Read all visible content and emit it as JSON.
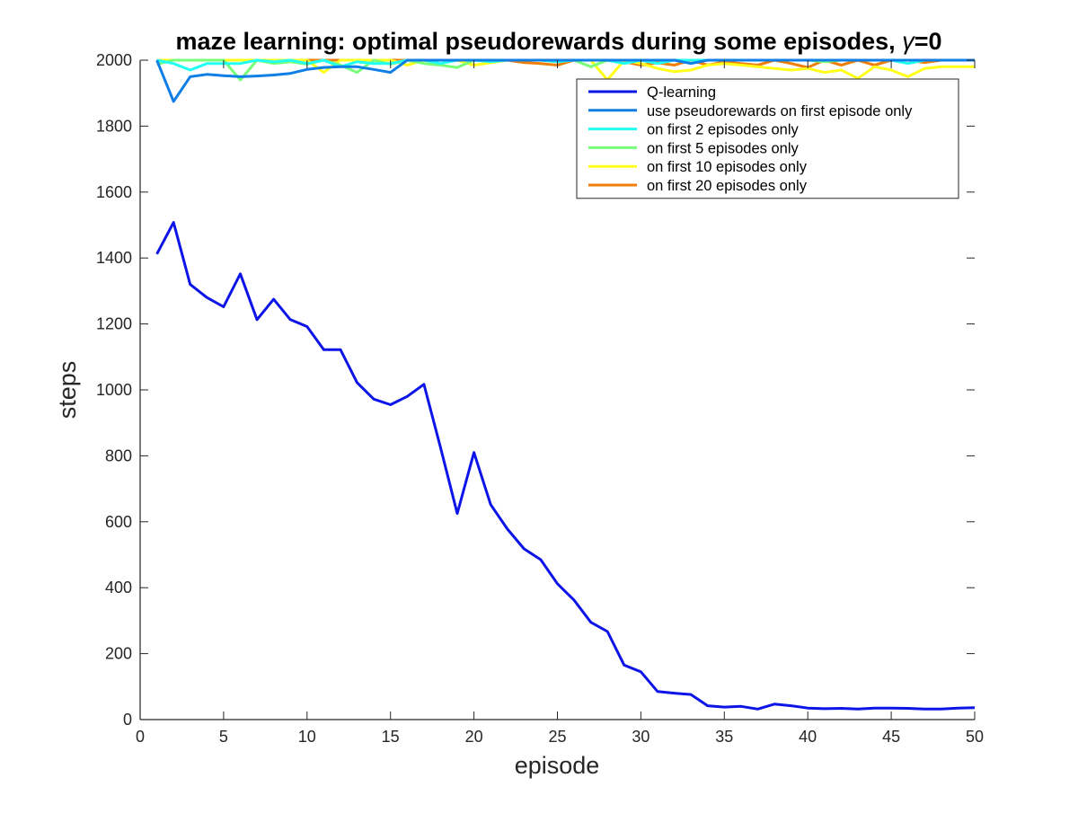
{
  "chart_data": {
    "type": "line",
    "title": "maze learning: optimal pseudorewards during some episodes, ",
    "title_symbol": "γ",
    "title_suffix": "=0",
    "xlabel": "episode",
    "ylabel": "steps",
    "xlim": [
      0,
      50
    ],
    "ylim": [
      0,
      2000
    ],
    "xticks": [
      "0",
      "5",
      "10",
      "15",
      "20",
      "25",
      "30",
      "35",
      "40",
      "45",
      "50"
    ],
    "yticks": [
      "0",
      "200",
      "400",
      "600",
      "800",
      "1000",
      "1200",
      "1400",
      "1600",
      "1800",
      "2000"
    ],
    "grid": false,
    "legend_position": "top-right",
    "x": [
      1,
      2,
      3,
      4,
      5,
      6,
      7,
      8,
      9,
      10,
      11,
      12,
      13,
      14,
      15,
      16,
      17,
      18,
      19,
      20,
      21,
      22,
      23,
      24,
      25,
      26,
      27,
      28,
      29,
      30,
      31,
      32,
      33,
      34,
      35,
      36,
      37,
      38,
      39,
      40,
      41,
      42,
      43,
      44,
      45,
      46,
      47,
      48,
      49,
      50
    ],
    "series": [
      {
        "name": "on first 20 episodes only",
        "color": "#f07f09",
        "values": [
          2000,
          2000,
          2000,
          2000,
          2000,
          2000,
          2000,
          2000,
          2000,
          2000,
          2000,
          2000,
          2000,
          2000,
          2000,
          2000,
          2000,
          2000,
          2000,
          2000,
          2000,
          2000,
          1993,
          1990,
          1985,
          2000,
          2000,
          2000,
          1995,
          1985,
          1992,
          1985,
          2000,
          1985,
          1995,
          1990,
          1985,
          2000,
          1990,
          1978,
          2000,
          1985,
          2000,
          1985,
          2000,
          2000,
          1993,
          2000,
          2000,
          2000
        ]
      },
      {
        "name": "on first 10 episodes only",
        "color": "#ffff1a",
        "values": [
          2000,
          2000,
          2000,
          2000,
          2000,
          2000,
          2000,
          2000,
          2000,
          2000,
          1963,
          2000,
          2000,
          2000,
          2000,
          1985,
          2000,
          2000,
          2000,
          1985,
          1992,
          2000,
          2000,
          2000,
          2000,
          2000,
          2000,
          1940,
          2000,
          1990,
          1975,
          1965,
          1970,
          1985,
          1990,
          1985,
          1980,
          1975,
          1970,
          1975,
          1963,
          1970,
          1945,
          1980,
          1970,
          1950,
          1975,
          1980,
          1980,
          1980
        ]
      },
      {
        "name": "on first 5 episodes only",
        "color": "#77ff77",
        "values": [
          1988,
          2000,
          2000,
          2000,
          2000,
          1940,
          2000,
          1990,
          1995,
          1988,
          2000,
          1985,
          1963,
          2000,
          1988,
          2000,
          1990,
          1985,
          1978,
          2000,
          2000,
          2000,
          2000,
          2000,
          1995,
          2000,
          1980,
          2000,
          1990,
          2000,
          2000,
          2000,
          2000,
          2000,
          2000,
          2000,
          2000,
          2000,
          2000,
          2000,
          1995,
          2000,
          2000,
          2000,
          2000,
          2000,
          2000,
          2000,
          2000,
          2000
        ]
      },
      {
        "name": "on first 2 episodes only",
        "color": "#22fff2",
        "values": [
          2000,
          1990,
          1970,
          1990,
          1990,
          1990,
          2000,
          1995,
          2000,
          1990,
          2000,
          1980,
          1995,
          1990,
          1990,
          2000,
          2000,
          1990,
          2000,
          2000,
          1995,
          2000,
          2000,
          2000,
          1995,
          2000,
          2000,
          2000,
          1990,
          2000,
          1990,
          2000,
          2000,
          2000,
          2000,
          2000,
          2000,
          2000,
          2000,
          2000,
          2000,
          2000,
          2000,
          2000,
          2000,
          1990,
          2000,
          2000,
          2000,
          2000
        ]
      },
      {
        "name": "use pseudorewards on first episode only",
        "color": "#0f7ee6",
        "values": [
          2000,
          1875,
          1950,
          1957,
          1953,
          1950,
          1952,
          1955,
          1960,
          1972,
          1978,
          1980,
          1980,
          1972,
          1963,
          2000,
          2000,
          2000,
          2000,
          2000,
          2000,
          2000,
          2000,
          2000,
          2000,
          2000,
          2000,
          2000,
          2000,
          2000,
          2000,
          2000,
          1990,
          2000,
          2000,
          2000,
          2000,
          2000,
          2000,
          2000,
          2000,
          2000,
          2000,
          2000,
          2000,
          2000,
          2000,
          2000,
          2000,
          2000
        ]
      },
      {
        "name": "Q-learning",
        "color": "#0d14e7",
        "values": [
          1412,
          1508,
          1320,
          1280,
          1252,
          1352,
          1213,
          1275,
          1213,
          1192,
          1122,
          1122,
          1022,
          972,
          955,
          980,
          1017,
          825,
          625,
          810,
          652,
          578,
          518,
          485,
          412,
          362,
          295,
          267,
          165,
          145,
          85,
          80,
          76,
          42,
          38,
          40,
          32,
          47,
          42,
          35,
          33,
          34,
          32,
          35,
          35,
          34,
          32,
          32,
          35,
          36
        ]
      }
    ]
  }
}
